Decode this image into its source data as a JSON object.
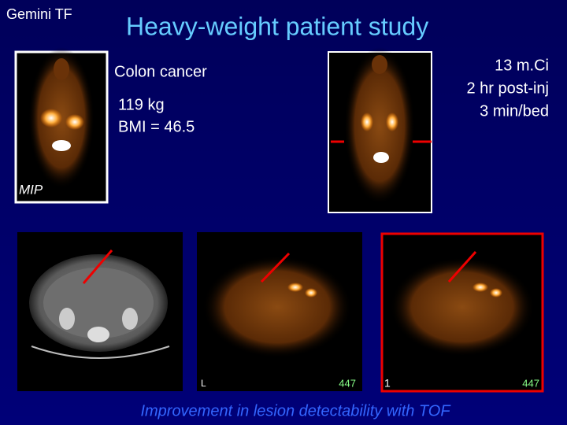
{
  "header": {
    "label": "Gemini TF",
    "title": "Heavy-weight patient study"
  },
  "patient": {
    "diagnosis": "Colon cancer",
    "weight": "119 kg",
    "bmi": "BMI = 46.5"
  },
  "protocol": {
    "dose": "13 m.Ci",
    "time": "2 hr post-inj",
    "scan": "3 min/bed"
  },
  "images": {
    "mip_label": "MIP",
    "pet_left_marker": "L",
    "pet_left_count": "447",
    "pet_right_marker": "1",
    "pet_right_count": "447"
  },
  "caption": "Improvement in lesion detectability with TOF"
}
